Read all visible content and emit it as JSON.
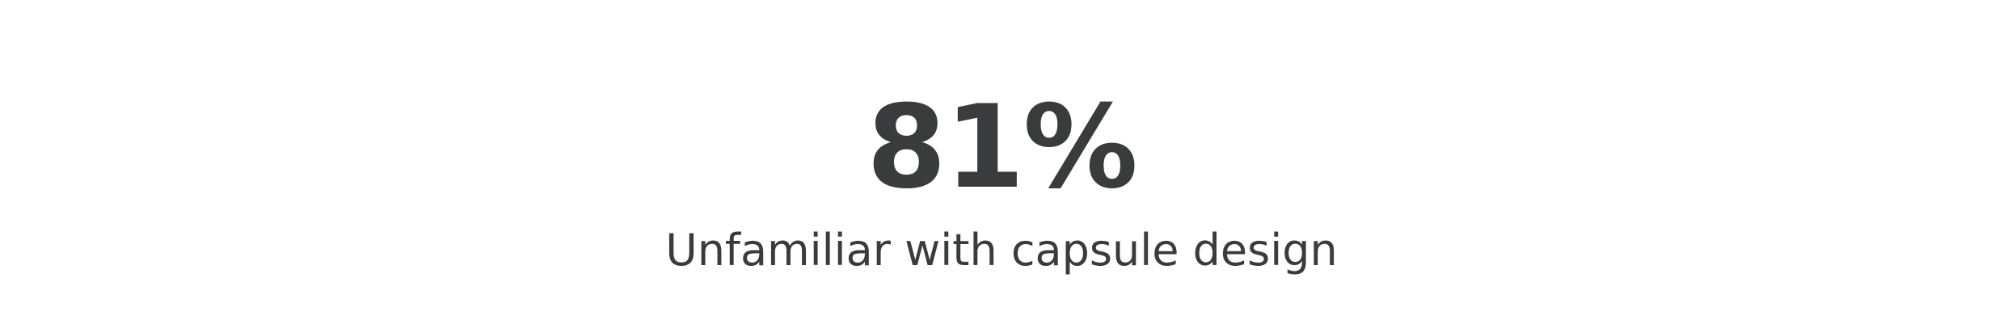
{
  "stat": {
    "value": "81%",
    "label": "Unfamiliar with capsule design"
  }
}
